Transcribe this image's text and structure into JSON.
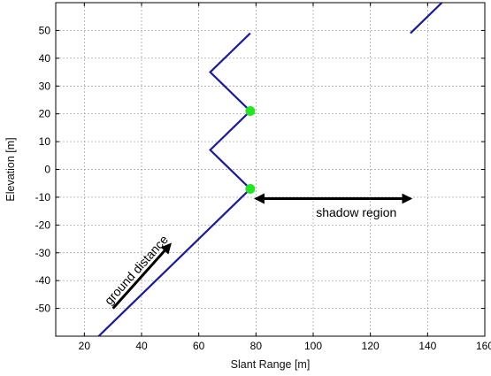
{
  "chart_data": {
    "type": "line",
    "xlabel": "Slant Range [m]",
    "ylabel": "Elevation [m]",
    "xlim": [
      10,
      160
    ],
    "ylim": [
      -60,
      60
    ],
    "xticks": [
      20,
      40,
      60,
      80,
      100,
      120,
      140,
      160
    ],
    "yticks": [
      -50,
      -40,
      -30,
      -20,
      -10,
      0,
      10,
      20,
      30,
      40,
      50
    ],
    "grid": true,
    "line_color": "#1a1a9c",
    "marker_color": "#22e61e",
    "series": [
      {
        "x": [
          25,
          78,
          64,
          78,
          64,
          78
        ],
        "y": [
          -60,
          -7,
          7,
          21,
          35,
          49
        ]
      },
      {
        "x": [
          134,
          145
        ],
        "y": [
          49,
          60
        ]
      }
    ],
    "markers": [
      {
        "x": 78,
        "y": 21
      },
      {
        "x": 78,
        "y": -7
      }
    ],
    "annotations": [
      {
        "text": "shadow region",
        "arrow": "double",
        "from": [
          80,
          -10.5
        ],
        "to": [
          134,
          -10.5
        ],
        "text_at": [
          101,
          -17
        ]
      },
      {
        "text": "ground distance",
        "arrow": "single",
        "from": [
          30,
          -50
        ],
        "to": [
          50,
          -27
        ],
        "text_at": [
          29,
          -49
        ]
      }
    ]
  }
}
